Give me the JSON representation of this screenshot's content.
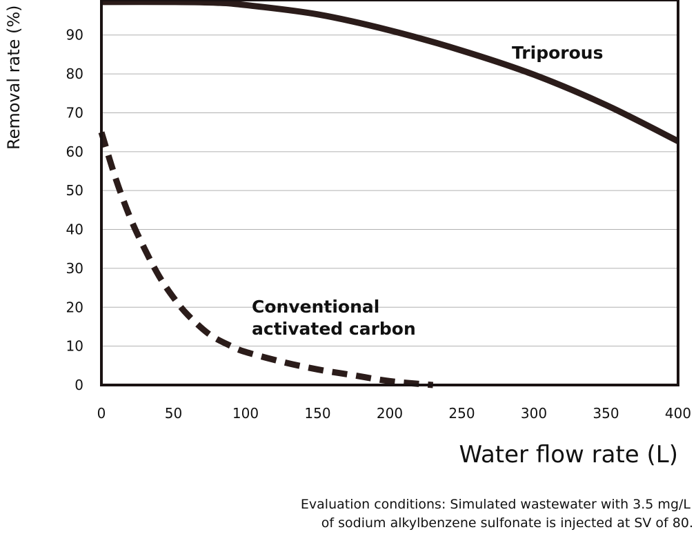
{
  "chart_data": {
    "type": "line",
    "xlabel": "Water flow rate (L)",
    "ylabel": "Removal rate (%)",
    "xlim": [
      0,
      400
    ],
    "ylim": [
      0,
      99
    ],
    "x_ticks": [
      0,
      50,
      100,
      150,
      200,
      250,
      300,
      350,
      400
    ],
    "y_ticks": [
      0,
      10,
      20,
      30,
      40,
      50,
      60,
      70,
      80,
      90
    ],
    "grid": "horizontal",
    "series": [
      {
        "name": "Triporous",
        "label": "Triporous",
        "style": "solid",
        "x": [
          0,
          50,
          80,
          100,
          150,
          200,
          250,
          300,
          350,
          400
        ],
        "y": [
          98.5,
          98.5,
          98.3,
          97.7,
          95.3,
          91.2,
          86,
          79.8,
          72,
          62.7
        ]
      },
      {
        "name": "Conventional activated carbon",
        "label_lines": [
          "Conventional",
          "activated carbon"
        ],
        "style": "dashed",
        "x": [
          0,
          10,
          20,
          30,
          40,
          50,
          60,
          75,
          90,
          100,
          125,
          150,
          175,
          200,
          230
        ],
        "y": [
          65,
          53,
          43,
          35,
          28,
          22.5,
          18,
          13,
          10,
          8.5,
          6,
          4,
          2.5,
          1,
          0
        ]
      }
    ],
    "footnote": [
      "Evaluation conditions: Simulated wastewater with 3.5 mg/L",
      "of sodium alkylbenzene sulfonate is injected at SV of 80."
    ]
  },
  "colors": {
    "line": "#2b1c1a",
    "frame": "#1a1212",
    "grid": "#b0b0b0",
    "text": "#111111"
  }
}
